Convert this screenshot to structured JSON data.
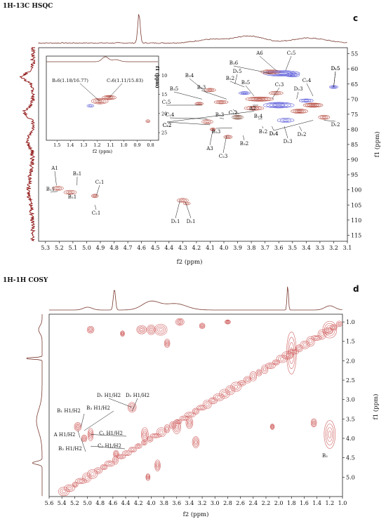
{
  "chart_data": [
    {
      "type": "heatmap",
      "title": "1H-13C HSQC",
      "panel_label": "c",
      "xlabel": "f2 (ppm)",
      "ylabel": "f1 (ppm)",
      "x_ticks": [
        "5.3",
        "5.2",
        "5.1",
        "5.0",
        "4.9",
        "4.8",
        "4.7",
        "4.6",
        "4.5",
        "4.4",
        "4.3",
        "4.2",
        "4.1",
        "4.0",
        "3.9",
        "3.8",
        "3.7",
        "3.6",
        "3.5",
        "3.4",
        "3.3",
        "3.2",
        "3.1"
      ],
      "y_ticks": [
        "55",
        "60",
        "65",
        "70",
        "75",
        "80",
        "85",
        "90",
        "95",
        "100",
        "105",
        "110",
        "115"
      ],
      "xlim": [
        5.35,
        3.1
      ],
      "ylim": [
        53,
        117
      ],
      "annotations": [
        {
          "label": "A1",
          "x": 5.22,
          "y": 98.5
        },
        {
          "label": "B₁1",
          "x": 5.21,
          "y": 100.5
        },
        {
          "label": "B₂1",
          "x": 5.1,
          "y": 101.5
        },
        {
          "label": "B₃1",
          "x": 5.07,
          "y": 98.5
        },
        {
          "label": "C₁1",
          "x": 4.93,
          "y": 102
        },
        {
          "label": "C₂1",
          "x": 4.94,
          "y": 105
        },
        {
          "label": "D₁1",
          "x": 4.32,
          "y": 103.5
        },
        {
          "label": "D₂1",
          "x": 4.28,
          "y": 104
        },
        {
          "label": "A3",
          "x": 4.08,
          "y": 80
        },
        {
          "label": "A6",
          "x": 3.62,
          "y": 60.5
        },
        {
          "label": "B₃6",
          "x": 3.66,
          "y": 61.5
        },
        {
          "label": "C₂5",
          "x": 3.55,
          "y": 60.5
        },
        {
          "label": "D₁5",
          "x": 3.2,
          "y": 66
        },
        {
          "label": "B₃4",
          "x": 4.12,
          "y": 68
        },
        {
          "label": "D₁5",
          "x": 3.92,
          "y": 65
        },
        {
          "label": "B₂2",
          "x": 3.85,
          "y": 66
        },
        {
          "label": "B₃3",
          "x": 3.98,
          "y": 70
        },
        {
          "label": "B₃5",
          "x": 4.16,
          "y": 70
        },
        {
          "label": "C₁5",
          "x": 4.16,
          "y": 72
        },
        {
          "label": "B₃5",
          "x": 3.78,
          "y": 69
        },
        {
          "label": "C₁3",
          "x": 3.65,
          "y": 70
        },
        {
          "label": "D₂3",
          "x": 3.47,
          "y": 70
        },
        {
          "label": "C₂4",
          "x": 3.35,
          "y": 69
        },
        {
          "label": "D₁5",
          "x": 3.2,
          "y": 66
        },
        {
          "label": "C₂2",
          "x": 3.78,
          "y": 74
        },
        {
          "label": "A2",
          "x": 3.75,
          "y": 72
        },
        {
          "label": "C₁2",
          "x": 3.89,
          "y": 75
        },
        {
          "label": "C₁4",
          "x": 4.12,
          "y": 76.5
        },
        {
          "label": "C₂2",
          "x": 4.1,
          "y": 78.5
        },
        {
          "label": "B₁3",
          "x": 4.0,
          "y": 76.5
        },
        {
          "label": "B₂3",
          "x": 3.94,
          "y": 79.5
        },
        {
          "label": "C₂3",
          "x": 3.98,
          "y": 82
        },
        {
          "label": "B₃2",
          "x": 3.86,
          "y": 82
        },
        {
          "label": "B₁4",
          "x": 3.72,
          "y": 76.5
        },
        {
          "label": "B₁2",
          "x": 3.72,
          "y": 79
        },
        {
          "label": "D₁4",
          "x": 3.65,
          "y": 79
        },
        {
          "label": "D₁3",
          "x": 3.56,
          "y": 79
        },
        {
          "label": "D₂2",
          "x": 3.45,
          "y": 79
        },
        {
          "label": "D₁4",
          "x": 3.35,
          "y": 77
        },
        {
          "label": "D₁2",
          "x": 3.27,
          "y": 77
        }
      ],
      "inset": {
        "annotations": [
          {
            "label": "B₂6(1.18/16.77)",
            "x": 1.18,
            "y": 16.77
          },
          {
            "label": "C₁6(1.11/15.83)",
            "x": 1.11,
            "y": 15.83
          }
        ],
        "x_ticks": [
          "1.5",
          "1.4",
          "1.3",
          "1.2",
          "1.1",
          "1.0",
          "0.9",
          "0.8"
        ],
        "y_ticks": [
          "10",
          "15",
          "20",
          "25"
        ],
        "ylabel": "f1 (ppm)",
        "xlabel": "f2 (ppm)"
      }
    },
    {
      "type": "heatmap",
      "title": "1H-1H COSY",
      "panel_label": "d",
      "xlabel": "f2 (ppm)",
      "ylabel": "f1 (ppm)",
      "x_ticks": [
        "5.6",
        "5.4",
        "5.2",
        "5.0",
        "4.8",
        "4.6",
        "4.4",
        "4.2",
        "4.0",
        "3.8",
        "3.6",
        "3.4",
        "3.2",
        "3.0",
        "2.8",
        "2.6",
        "2.4",
        "2.2",
        "2.0",
        "1.8",
        "1.6",
        "1.4",
        "1.2",
        "1.0"
      ],
      "y_ticks": [
        "1.0",
        "1.5",
        "2.0",
        "2.5",
        "3.0",
        "3.5",
        "4.0",
        "4.5",
        "5.0"
      ],
      "xlim": [
        5.6,
        1.0
      ],
      "ylim": [
        0.8,
        5.5
      ],
      "annotations": [
        {
          "label": "D₁ H1/H2",
          "x": 4.3,
          "y": 3.2
        },
        {
          "label": "D₂ H1/H2",
          "x": 4.3,
          "y": 3.3
        },
        {
          "label": "B₁ H1/H2",
          "x": 5.1,
          "y": 3.7
        },
        {
          "label": "B₃ H1/H2",
          "x": 5.05,
          "y": 3.8
        },
        {
          "label": "A H1/H2",
          "x": 5.15,
          "y": 3.8
        },
        {
          "label": "C₁ H1/H2",
          "x": 4.95,
          "y": 3.9
        },
        {
          "label": "B₂ H1/H2",
          "x": 5.1,
          "y": 4.0
        },
        {
          "label": "C₂ H1/H2",
          "x": 4.95,
          "y": 4.2
        },
        {
          "label": "B₂",
          "x": 1.35,
          "y": 4.7
        }
      ]
    }
  ]
}
